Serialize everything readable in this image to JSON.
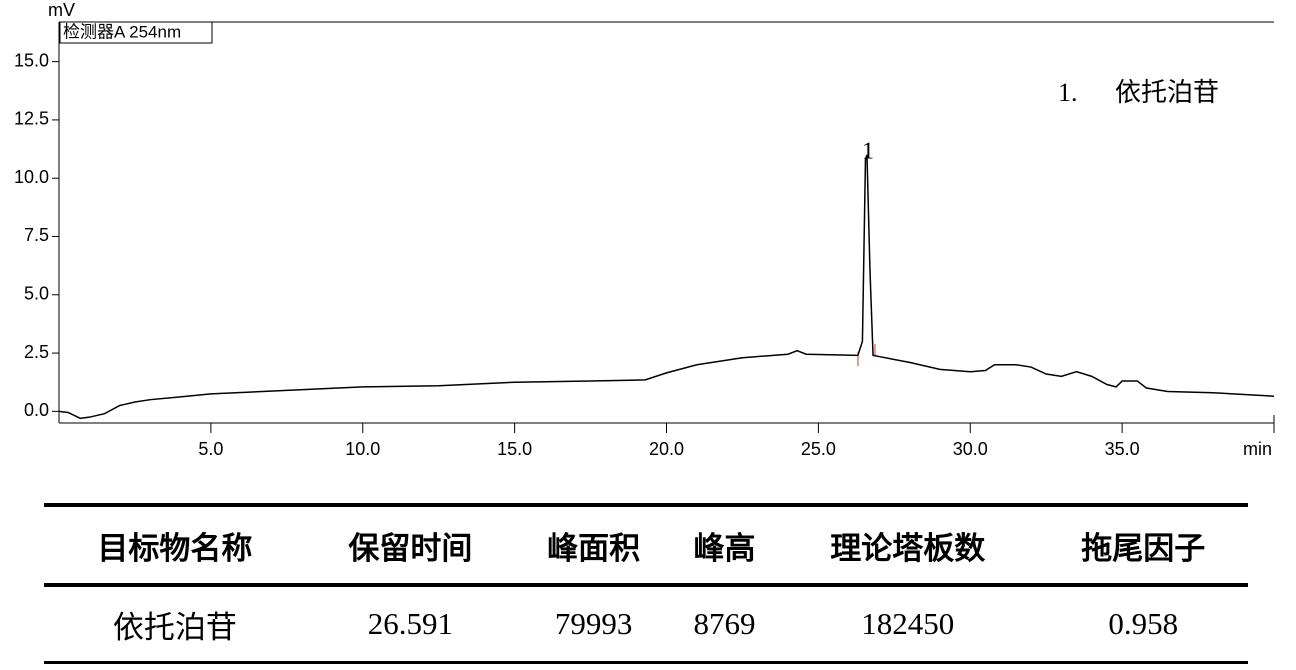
{
  "chart_data": {
    "type": "line",
    "y_unit": "mV",
    "x_unit": "min",
    "detector": "检测器A 254nm",
    "peak_label": "1",
    "peak_legend": {
      "number": "1.",
      "name": "依托泊苷"
    },
    "color": "#000000",
    "x": [
      0,
      0.3,
      0.7,
      1.0,
      1.5,
      2.0,
      2.5,
      3.0,
      4.0,
      5.0,
      7.5,
      10.0,
      12.5,
      15.0,
      17.5,
      19.3,
      20.0,
      21.0,
      22.5,
      24.0,
      24.3,
      24.6,
      26.3,
      26.45,
      26.55,
      26.6,
      26.7,
      26.8,
      27.0,
      28.0,
      29.0,
      30.0,
      30.5,
      30.8,
      31.5,
      32.0,
      32.5,
      33.0,
      33.5,
      34.0,
      34.5,
      34.8,
      35.0,
      35.5,
      35.8,
      36.5,
      38.0,
      40.0
    ],
    "values": [
      0.0,
      -0.05,
      -0.3,
      -0.25,
      -0.1,
      0.25,
      0.4,
      0.5,
      0.62,
      0.75,
      0.9,
      1.05,
      1.1,
      1.25,
      1.3,
      1.35,
      1.65,
      2.0,
      2.3,
      2.45,
      2.6,
      2.45,
      2.4,
      3.0,
      10.8,
      11.0,
      6.0,
      2.4,
      2.35,
      2.1,
      1.8,
      1.7,
      1.75,
      2.0,
      2.0,
      1.9,
      1.6,
      1.5,
      1.7,
      1.5,
      1.15,
      1.05,
      1.3,
      1.3,
      1.0,
      0.85,
      0.8,
      0.65
    ],
    "xlim": [
      0,
      40
    ],
    "ylim": [
      -0.5,
      16.7
    ],
    "xticks": [
      {
        "value": 5,
        "label": "5.0"
      },
      {
        "value": 10,
        "label": "10.0"
      },
      {
        "value": 15,
        "label": "15.0"
      },
      {
        "value": 20,
        "label": "20.0"
      },
      {
        "value": 25,
        "label": "25.0"
      },
      {
        "value": 30,
        "label": "30.0"
      },
      {
        "value": 35,
        "label": "35.0"
      }
    ],
    "yticks": [
      {
        "value": 0,
        "label": "0.0"
      },
      2.5,
      {
        "value": 5,
        "label": "5.0"
      },
      7.5,
      {
        "value": 10,
        "label": "10.0"
      },
      12.5,
      {
        "value": 15,
        "label": "15.0"
      }
    ]
  },
  "table": {
    "header": [
      "目标物名称",
      "保留时间",
      "峰面积",
      "峰高",
      "理论塔板数",
      "拖尾因子"
    ],
    "rows": [
      [
        "依托泊苷",
        "26.591",
        "79993",
        "8769",
        "182450",
        "0.958"
      ]
    ]
  }
}
